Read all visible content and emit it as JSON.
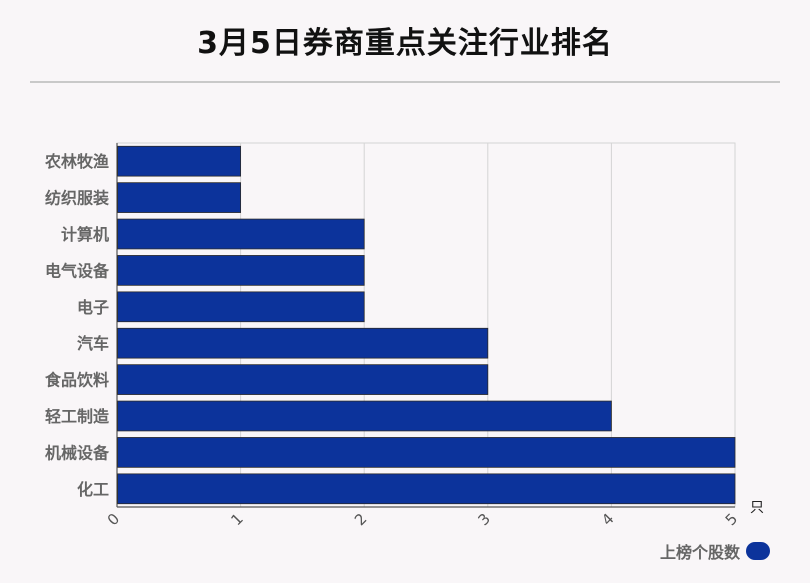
{
  "title": "3月5日券商重点关注行业排名",
  "chart_data": {
    "type": "bar",
    "orientation": "horizontal",
    "categories": [
      "农林牧渔",
      "纺织服装",
      "计算机",
      "电气设备",
      "电子",
      "汽车",
      "食品饮料",
      "轻工制造",
      "机械设备",
      "化工"
    ],
    "series": [
      {
        "name": "上榜个股数",
        "values": [
          1,
          1,
          2,
          2,
          2,
          3,
          3,
          4,
          5,
          5
        ],
        "color": "#0c339b"
      }
    ],
    "xlim": [
      0,
      5
    ],
    "xticks": [
      "0",
      "1",
      "2",
      "3",
      "4",
      "5"
    ],
    "xunit": "只",
    "grid": true,
    "legend_position": "bottom-right"
  }
}
